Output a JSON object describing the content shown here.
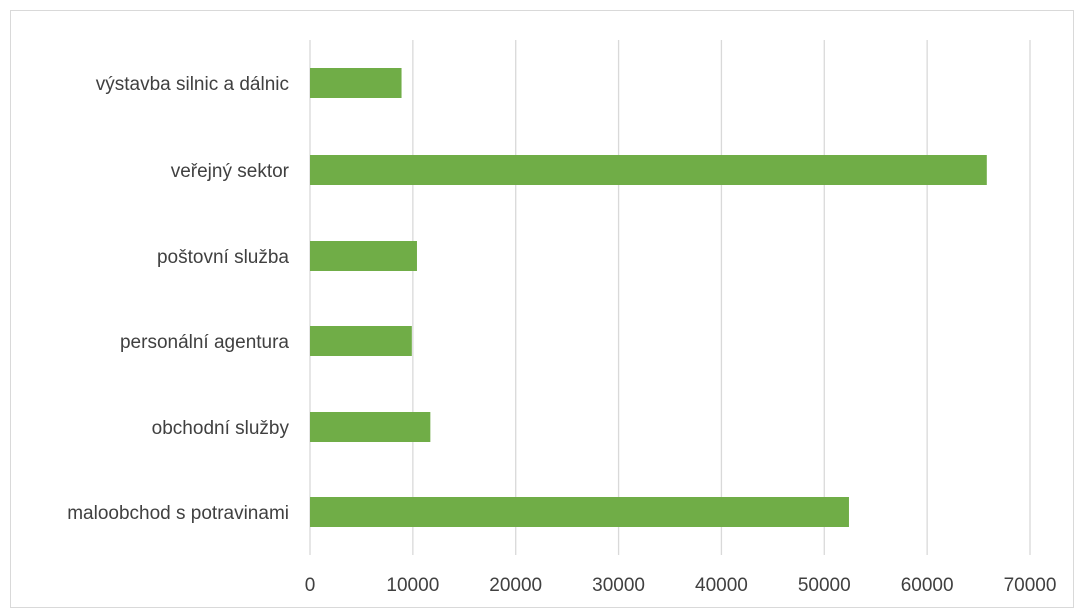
{
  "chart_data": {
    "type": "bar",
    "orientation": "horizontal",
    "categories": [
      "výstavba silnic a dálnic",
      "veřejný sektor",
      "poštovní služba",
      "personální agentura",
      "obchodní služby",
      "maloobchod s potravinami"
    ],
    "values": [
      8900,
      65800,
      10400,
      9900,
      11700,
      52400
    ],
    "xlim": [
      0,
      70000
    ],
    "x_ticks": [
      "0",
      "10000",
      "20000",
      "30000",
      "40000",
      "50000",
      "60000",
      "70000"
    ],
    "title": "",
    "xlabel": "",
    "ylabel": "",
    "grid": "vertical",
    "legend": "none",
    "bar_color": "#70ad47",
    "gridline_color": "#d9d9d9"
  }
}
